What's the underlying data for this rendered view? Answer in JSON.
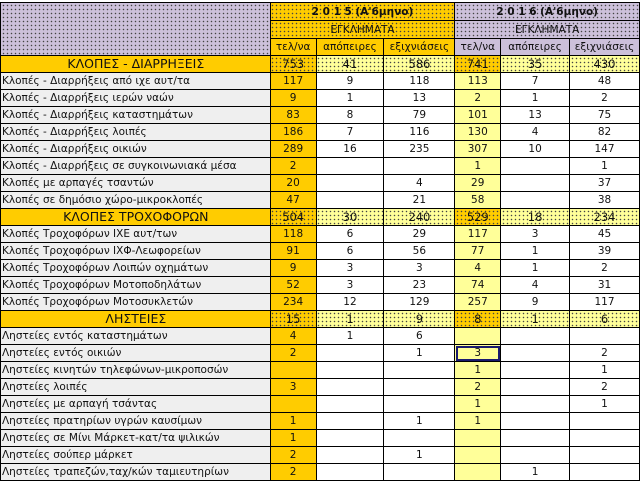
{
  "header": {
    "year_2015": "2 0 1 5  (Α'6μηνο)",
    "year_2016": "2 0 1 6 (Α'6μηνο)",
    "crimes_2015": "ΕΓΚΛΗΜΑΤΑ",
    "crimes_2016": "ΕΓΚΛΗΜΑΤΑ",
    "columns": [
      "τελ/να",
      "απόπειρες",
      "εξιχνιάσεις",
      "τελ/να",
      "απόπειρες",
      "εξιχνιάσεις"
    ]
  },
  "colors": {
    "orange": "#ffcc00",
    "light_yellow": "#ffff99",
    "purple": "#ccc0da",
    "label_bg": "#efefef"
  },
  "selected_cell": "2016 τελ/να — Ληστείες εντός οικιών",
  "rows": [
    {
      "section": true,
      "label": "ΚΛΟΠΕΣ - ΔΙΑΡΡΗΞΕΙΣ",
      "values": [
        "753",
        "41",
        "586",
        "741",
        "35",
        "430"
      ]
    },
    {
      "label": "Κλοπές - Διαρρήξεις από ιχε αυτ/τα",
      "values": [
        "117",
        "9",
        "118",
        "113",
        "7",
        "48"
      ]
    },
    {
      "label": "Κλοπές - Διαρρήξεις ιερών ναών",
      "values": [
        "9",
        "1",
        "13",
        "2",
        "1",
        "2"
      ]
    },
    {
      "label": "Κλοπές - Διαρρήξεις καταστημάτων",
      "values": [
        "83",
        "8",
        "79",
        "101",
        "13",
        "75"
      ]
    },
    {
      "label": "Κλοπές - Διαρρήξεις λοιπές",
      "values": [
        "186",
        "7",
        "116",
        "130",
        "4",
        "82"
      ]
    },
    {
      "label": "Κλοπές - Διαρρήξεις οικιών",
      "values": [
        "289",
        "16",
        "235",
        "307",
        "10",
        "147"
      ]
    },
    {
      "label": "Κλοπές - Διαρρήξεις σε συγκοινωνιακά μέσα",
      "values": [
        "2",
        "",
        "",
        "1",
        "",
        "1"
      ]
    },
    {
      "label": "Κλοπές με αρπαγές τσαντών",
      "values": [
        "20",
        "",
        "4",
        "29",
        "",
        "37"
      ]
    },
    {
      "label": "Κλοπές σε δημόσιο χώρο-μικροκλοπές",
      "values": [
        "47",
        "",
        "21",
        "58",
        "",
        "38"
      ]
    },
    {
      "section": true,
      "label": "ΚΛΟΠΕΣ ΤΡΟΧΟΦΟΡΩΝ",
      "values": [
        "504",
        "30",
        "240",
        "529",
        "18",
        "234"
      ]
    },
    {
      "label": "Κλοπές Τροχοφόρων ΙΧΕ αυτ/των",
      "values": [
        "118",
        "6",
        "29",
        "117",
        "3",
        "45"
      ]
    },
    {
      "label": "Κλοπές Τροχοφόρων ΙΧΦ-Λεωφορείων",
      "values": [
        "91",
        "6",
        "56",
        "77",
        "1",
        "39"
      ]
    },
    {
      "label": "Κλοπές Τροχοφόρων Λοιπών οχημάτων",
      "values": [
        "9",
        "3",
        "3",
        "4",
        "1",
        "2"
      ]
    },
    {
      "label": "Κλοπές Τροχοφόρων Μοτοποδηλάτων",
      "values": [
        "52",
        "3",
        "23",
        "74",
        "4",
        "31"
      ]
    },
    {
      "label": "Κλοπές Τροχοφόρων Μοτοσυκλετών",
      "values": [
        "234",
        "12",
        "129",
        "257",
        "9",
        "117"
      ]
    },
    {
      "section": true,
      "label": "ΛΗΣΤΕΙΕΣ",
      "values": [
        "15",
        "1",
        "9",
        "8",
        "1",
        "6"
      ]
    },
    {
      "label": "Ληστείες εντός καταστημάτων",
      "values": [
        "4",
        "1",
        "6",
        "",
        "",
        ""
      ]
    },
    {
      "label": "Ληστείες εντός οικιών",
      "values": [
        "2",
        "",
        "1",
        "3",
        "",
        "2"
      ]
    },
    {
      "label": "Ληστείες κινητών τηλεφώνων-μικροποσών",
      "values": [
        "",
        "",
        "",
        "1",
        "",
        "1"
      ]
    },
    {
      "label": "Ληστείες λοιπές",
      "values": [
        "3",
        "",
        "",
        "2",
        "",
        "2"
      ]
    },
    {
      "label": "Ληστείες με αρπαγή τσάντας",
      "values": [
        "",
        "",
        "",
        "1",
        "",
        "1"
      ]
    },
    {
      "label": "Ληστείες πρατηρίων υγρών καυσίμων",
      "values": [
        "1",
        "",
        "1",
        "1",
        "",
        ""
      ]
    },
    {
      "label": "Ληστείες σε Μίνι Μάρκετ-κατ/τα ψιλικών",
      "values": [
        "1",
        "",
        "",
        "",
        "",
        ""
      ]
    },
    {
      "label": "Ληστείες σούπερ μάρκετ",
      "values": [
        "2",
        "",
        "1",
        "",
        "",
        ""
      ]
    },
    {
      "label": "Ληστείες τραπεζών,ταχ/κών ταμιευτηρίων",
      "values": [
        "2",
        "",
        "",
        "",
        "1",
        ""
      ]
    }
  ]
}
